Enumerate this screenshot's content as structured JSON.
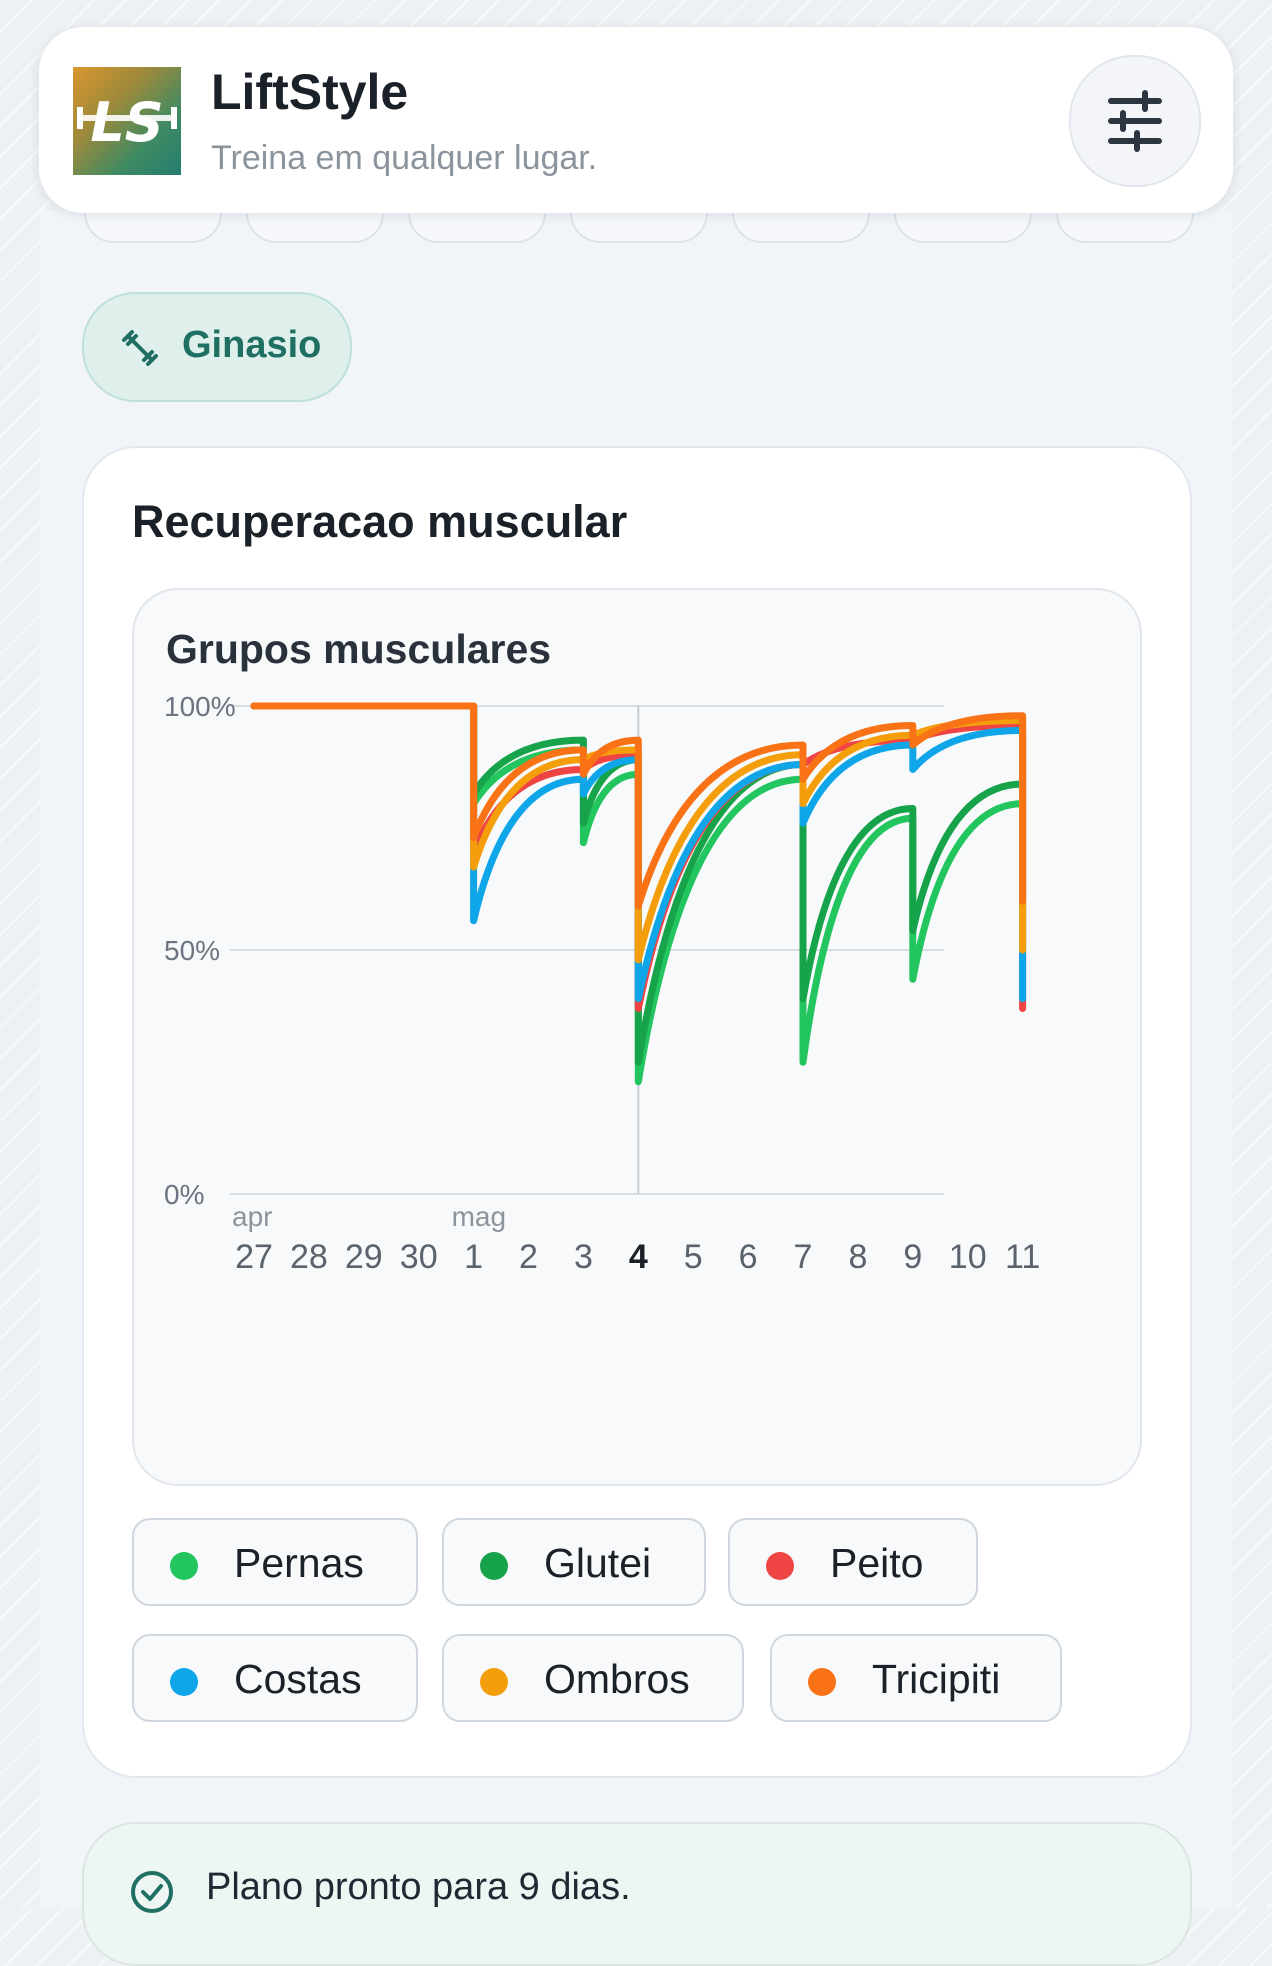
{
  "header": {
    "title": "LiftStyle",
    "subtitle": "Treina em qualquer lugar.",
    "logo_text": "LS",
    "settings_icon": "sliders-icon"
  },
  "mode_chip": {
    "label": "Ginasio",
    "icon": "dumbbell-icon"
  },
  "recovery_card": {
    "title": "Recuperacao muscular",
    "chart_title": "Grupos musculares"
  },
  "plan_status": {
    "text": "Plano pronto para 9 dias.",
    "icon": "check-circle-icon"
  },
  "chart_data": {
    "type": "line",
    "title": "Grupos musculares",
    "xlabel": "",
    "ylabel": "",
    "x_month_labels": [
      "apr",
      "mag"
    ],
    "x_tick_labels": [
      "27",
      "28",
      "29",
      "30",
      "1",
      "2",
      "3",
      "4",
      "5",
      "6",
      "7",
      "8",
      "9",
      "10",
      "11"
    ],
    "highlight_tick": "4",
    "y_tick_labels": [
      "100%",
      "50%",
      "0%"
    ],
    "ylim": [
      0,
      100
    ],
    "grid": true,
    "legend_position": "bottom",
    "series": [
      {
        "name": "Pernas",
        "color": "#22c55e",
        "points": [
          [
            0,
            100
          ],
          [
            4,
            100
          ],
          [
            4,
            80
          ],
          [
            6,
            91
          ],
          [
            6,
            72
          ],
          [
            7,
            86
          ],
          [
            7,
            23
          ],
          [
            10,
            85
          ],
          [
            10,
            27
          ],
          [
            12,
            77
          ],
          [
            12,
            44
          ],
          [
            14,
            80
          ]
        ]
      },
      {
        "name": "Glutei",
        "color": "#16a34a",
        "points": [
          [
            0,
            100
          ],
          [
            4,
            100
          ],
          [
            4,
            82
          ],
          [
            6,
            93
          ],
          [
            6,
            76
          ],
          [
            7,
            89
          ],
          [
            7,
            27
          ],
          [
            10,
            88
          ],
          [
            10,
            40
          ],
          [
            12,
            79
          ],
          [
            12,
            54
          ],
          [
            14,
            84
          ]
        ]
      },
      {
        "name": "Peito",
        "color": "#ef4444",
        "points": [
          [
            0,
            100
          ],
          [
            4,
            100
          ],
          [
            4,
            70
          ],
          [
            6,
            87
          ],
          [
            7,
            90
          ],
          [
            7,
            38
          ],
          [
            10,
            88
          ],
          [
            12,
            93
          ],
          [
            14,
            96
          ],
          [
            14,
            38
          ]
        ]
      },
      {
        "name": "Costas",
        "color": "#0ea5e9",
        "points": [
          [
            0,
            100
          ],
          [
            4,
            100
          ],
          [
            4,
            56
          ],
          [
            6,
            85
          ],
          [
            6,
            82
          ],
          [
            7,
            89
          ],
          [
            7,
            40
          ],
          [
            10,
            88
          ],
          [
            10,
            76
          ],
          [
            12,
            92
          ],
          [
            12,
            87
          ],
          [
            14,
            95
          ],
          [
            14,
            40
          ]
        ]
      },
      {
        "name": "Ombros",
        "color": "#f59e0b",
        "points": [
          [
            0,
            100
          ],
          [
            4,
            100
          ],
          [
            4,
            67
          ],
          [
            6,
            89
          ],
          [
            7,
            91
          ],
          [
            7,
            48
          ],
          [
            10,
            90
          ],
          [
            10,
            80
          ],
          [
            12,
            94
          ],
          [
            14,
            97
          ],
          [
            14,
            50
          ]
        ]
      },
      {
        "name": "Tricipiti",
        "color": "#f97316",
        "points": [
          [
            0,
            100
          ],
          [
            4,
            100
          ],
          [
            4,
            73
          ],
          [
            6,
            91
          ],
          [
            6,
            86
          ],
          [
            7,
            93
          ],
          [
            7,
            59
          ],
          [
            10,
            92
          ],
          [
            10,
            85
          ],
          [
            12,
            96
          ],
          [
            12,
            92
          ],
          [
            14,
            98
          ],
          [
            14,
            60
          ]
        ]
      }
    ]
  }
}
